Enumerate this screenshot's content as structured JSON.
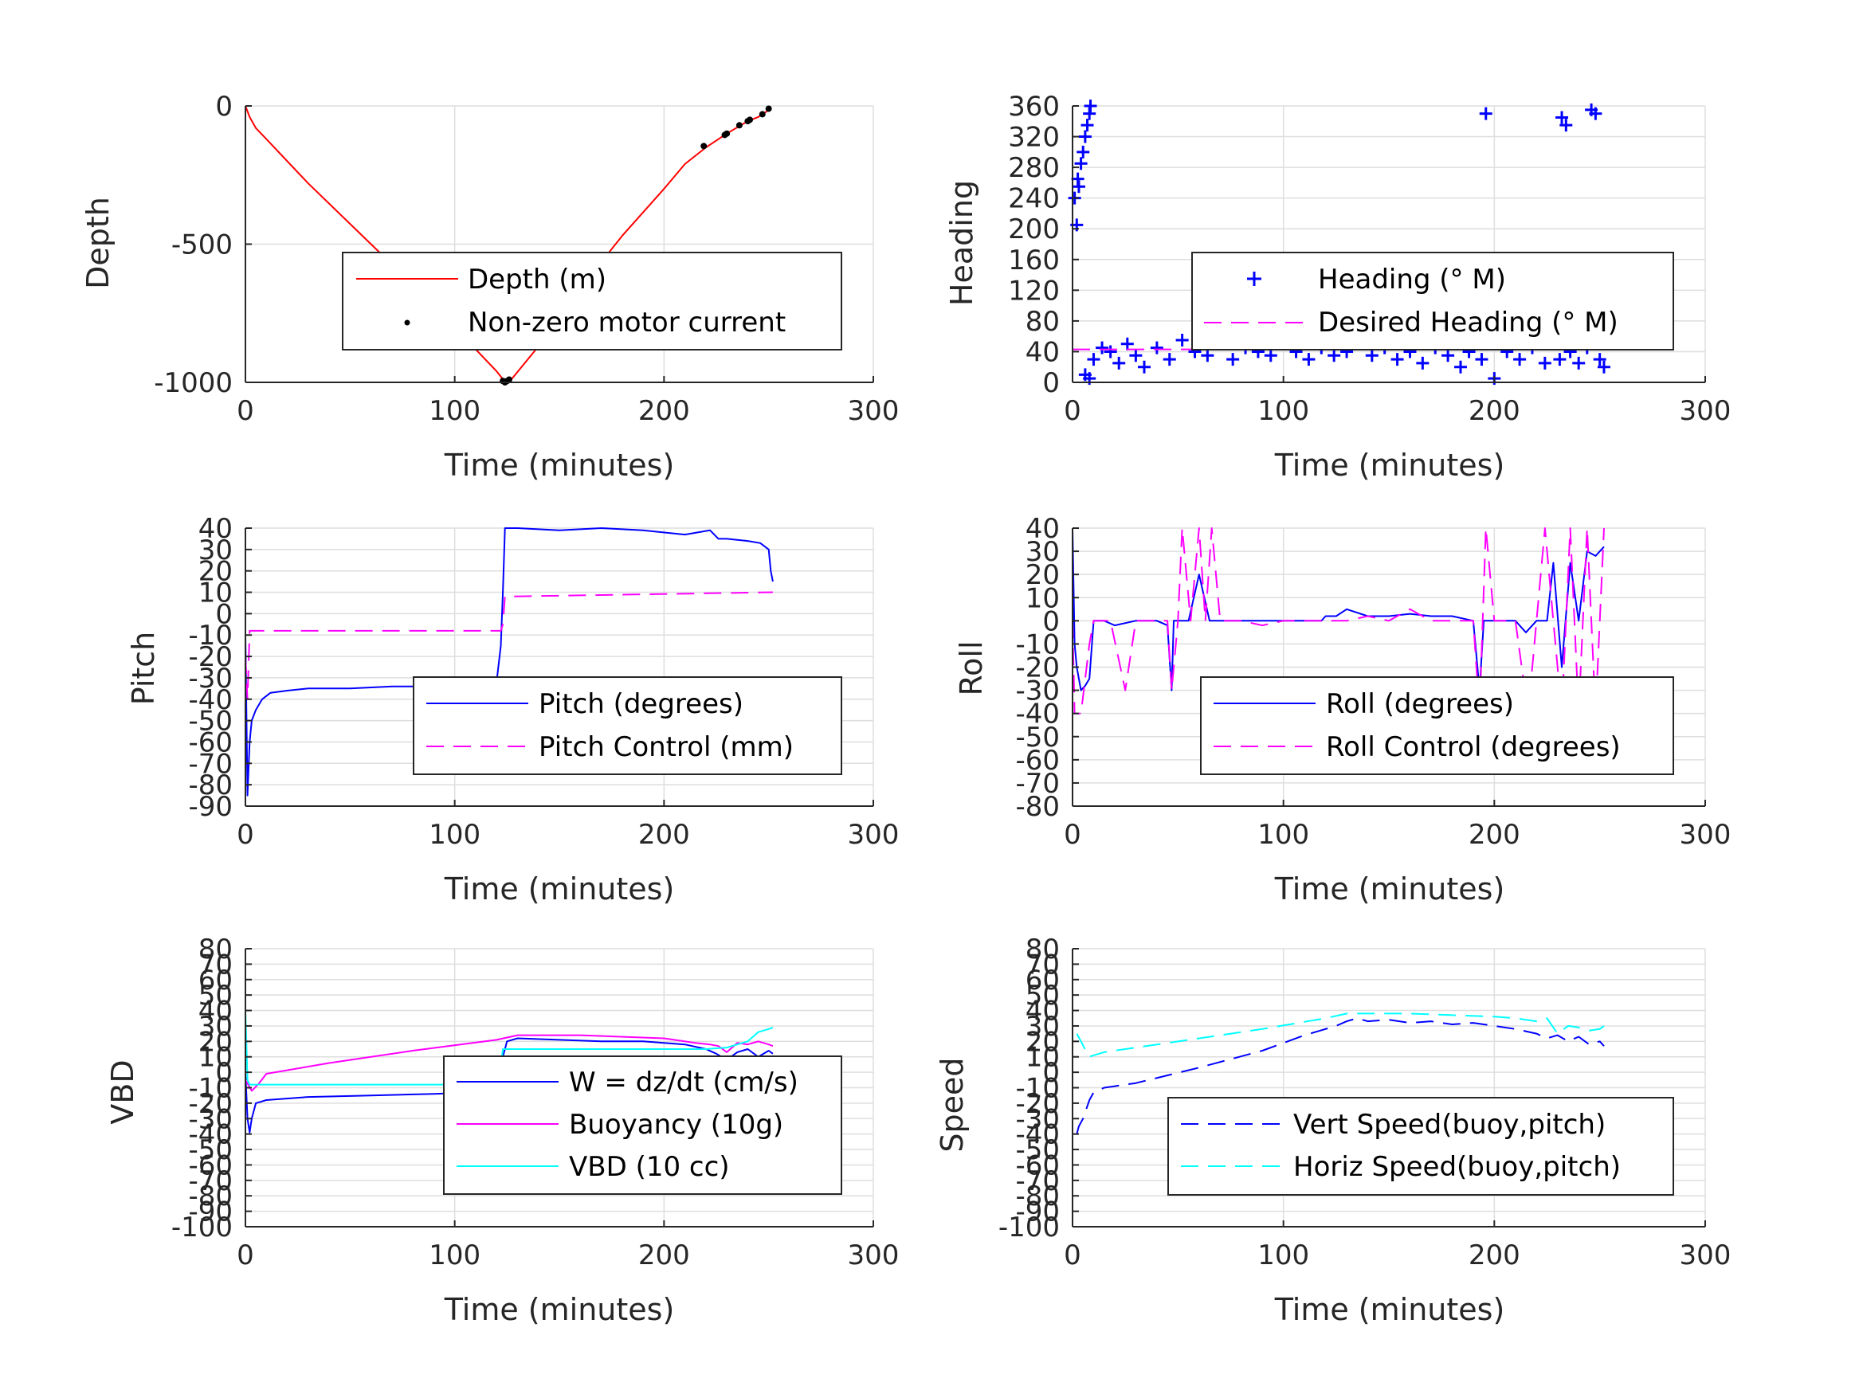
{
  "chart_data": [
    {
      "id": "depth",
      "type": "line",
      "xlabel": "Time (minutes)",
      "ylabel": "Depth",
      "xlim": [
        0,
        300
      ],
      "ylim": [
        -1000,
        0
      ],
      "xticks": [
        0,
        100,
        200,
        300
      ],
      "yticks": [
        -1000,
        -500,
        0
      ],
      "grid": true,
      "legend": "center-right",
      "series": [
        {
          "name": "Depth (m)",
          "color": "#ff0000",
          "style": "solid",
          "x": [
            0,
            2,
            5,
            10,
            30,
            60,
            90,
            110,
            120,
            124,
            127,
            140,
            160,
            180,
            200,
            210,
            220,
            230,
            240,
            245,
            250,
            251
          ],
          "y": [
            0,
            -40,
            -80,
            -120,
            -280,
            -500,
            -720,
            -880,
            -960,
            -998,
            -990,
            -870,
            -660,
            -470,
            -300,
            -210,
            -150,
            -100,
            -55,
            -40,
            -15,
            -5
          ]
        },
        {
          "name": "Non-zero motor current",
          "color": "#000000",
          "style": "marker-dot",
          "x": [
            123,
            124,
            125,
            126,
            219,
            229,
            230,
            236,
            240,
            241,
            247,
            250
          ],
          "y": [
            -995,
            -1000,
            -995,
            -990,
            -145,
            -105,
            -100,
            -70,
            -55,
            -50,
            -30,
            -10
          ]
        }
      ]
    },
    {
      "id": "heading",
      "type": "scatter",
      "xlabel": "Time (minutes)",
      "ylabel": "Heading",
      "xlim": [
        0,
        300
      ],
      "ylim": [
        0,
        360
      ],
      "xticks": [
        0,
        100,
        200,
        300
      ],
      "yticks": [
        0,
        40,
        80,
        120,
        160,
        200,
        240,
        280,
        320,
        360
      ],
      "grid": true,
      "legend": "center-right",
      "series": [
        {
          "name": "Heading (° M)",
          "color": "#0000ff",
          "style": "marker-plus",
          "x": [
            1,
            2,
            2.5,
            3,
            4,
            5,
            6,
            7,
            8,
            8.5,
            6,
            8,
            10,
            14,
            18,
            22,
            26,
            30,
            34,
            40,
            46,
            52,
            58,
            64,
            70,
            76,
            82,
            88,
            94,
            100,
            106,
            112,
            118,
            124,
            130,
            136,
            142,
            148,
            154,
            160,
            166,
            172,
            178,
            184,
            188,
            194,
            196,
            200,
            206,
            212,
            218,
            224,
            228,
            231,
            232,
            234,
            236,
            240,
            244,
            246,
            248,
            250,
            252
          ],
          "y": [
            240,
            205,
            265,
            255,
            285,
            300,
            320,
            335,
            350,
            360,
            10,
            5,
            30,
            45,
            40,
            25,
            50,
            35,
            20,
            45,
            30,
            55,
            40,
            35,
            50,
            30,
            45,
            40,
            35,
            50,
            40,
            30,
            45,
            35,
            40,
            55,
            35,
            45,
            30,
            40,
            25,
            45,
            35,
            20,
            40,
            30,
            350,
            5,
            40,
            30,
            45,
            25,
            50,
            30,
            345,
            335,
            40,
            25,
            45,
            355,
            350,
            30,
            20
          ]
        },
        {
          "name": "Desired Heading (° M)",
          "color": "#ff00ff",
          "style": "dashed",
          "x": [
            0,
            252
          ],
          "y": [
            43,
            43
          ]
        }
      ]
    },
    {
      "id": "pitch",
      "type": "line",
      "xlabel": "Time (minutes)",
      "ylabel": "Pitch",
      "xlim": [
        0,
        300
      ],
      "ylim": [
        -90,
        40
      ],
      "xticks": [
        0,
        100,
        200,
        300
      ],
      "yticks": [
        -90,
        -80,
        -70,
        -60,
        -50,
        -40,
        -30,
        -20,
        -10,
        0,
        10,
        20,
        30,
        40
      ],
      "grid": true,
      "legend": "center-right",
      "series": [
        {
          "name": "Pitch (degrees)",
          "color": "#0000ff",
          "style": "solid",
          "x": [
            0,
            1,
            2,
            3,
            5,
            8,
            12,
            20,
            30,
            50,
            70,
            90,
            110,
            120,
            122,
            123,
            124,
            130,
            150,
            170,
            190,
            210,
            222,
            226,
            230,
            240,
            246,
            250,
            251,
            252
          ],
          "y": [
            -10,
            -85,
            -60,
            -50,
            -45,
            -40,
            -37,
            -36,
            -35,
            -35,
            -34,
            -34,
            -33,
            -32,
            -15,
            10,
            40,
            40,
            39,
            40,
            39,
            37,
            39,
            35,
            35,
            34,
            33,
            30,
            20,
            15
          ]
        },
        {
          "name": "Pitch Control (mm)",
          "color": "#ff00ff",
          "style": "dashed",
          "x": [
            0,
            1,
            2,
            3,
            122,
            123,
            124,
            252
          ],
          "y": [
            -20,
            -40,
            -8,
            -8,
            -8,
            -5,
            8,
            10
          ]
        }
      ]
    },
    {
      "id": "roll",
      "type": "line",
      "xlabel": "Time (minutes)",
      "ylabel": "Roll",
      "xlim": [
        0,
        300
      ],
      "ylim": [
        -80,
        40
      ],
      "xticks": [
        0,
        100,
        200,
        300
      ],
      "yticks": [
        -80,
        -70,
        -60,
        -50,
        -40,
        -30,
        -20,
        -10,
        0,
        10,
        20,
        30,
        40
      ],
      "grid": true,
      "legend": "center-right",
      "series": [
        {
          "name": "Roll (degrees)",
          "color": "#0000ff",
          "style": "solid",
          "x": [
            0,
            1,
            2,
            4,
            6,
            8,
            10,
            15,
            20,
            30,
            40,
            45,
            47,
            48,
            55,
            60,
            65,
            70,
            80,
            90,
            100,
            110,
            118,
            120,
            125,
            130,
            140,
            150,
            160,
            170,
            180,
            190,
            193,
            195,
            200,
            210,
            215,
            220,
            225,
            228,
            232,
            236,
            240,
            244,
            248,
            252
          ],
          "y": [
            40,
            -10,
            -20,
            -30,
            -28,
            -25,
            0,
            0,
            -2,
            0,
            0,
            -2,
            -30,
            0,
            0,
            20,
            0,
            0,
            0,
            0,
            0,
            0,
            0,
            2,
            2,
            5,
            2,
            2,
            3,
            2,
            2,
            0,
            -30,
            0,
            0,
            0,
            -5,
            0,
            0,
            25,
            -20,
            25,
            0,
            30,
            28,
            32
          ]
        },
        {
          "name": "Roll Control (degrees)",
          "color": "#ff00ff",
          "style": "dashed",
          "x": [
            0,
            1,
            4,
            8,
            10,
            18,
            25,
            30,
            45,
            47,
            50,
            52,
            56,
            60,
            63,
            66,
            70,
            80,
            90,
            100,
            110,
            120,
            126,
            130,
            140,
            150,
            160,
            170,
            180,
            190,
            193,
            196,
            200,
            210,
            216,
            220,
            224,
            228,
            232,
            236,
            240,
            244,
            248,
            252
          ],
          "y": [
            0,
            -40,
            -40,
            -10,
            0,
            0,
            -30,
            0,
            0,
            -30,
            0,
            40,
            0,
            40,
            0,
            40,
            0,
            0,
            -2,
            0,
            0,
            0,
            0,
            0,
            2,
            0,
            5,
            0,
            0,
            0,
            -40,
            40,
            0,
            0,
            -40,
            0,
            40,
            0,
            -40,
            40,
            -40,
            40,
            -40,
            40
          ]
        }
      ]
    },
    {
      "id": "vbd",
      "type": "line",
      "xlabel": "Time (minutes)",
      "ylabel": "VBD",
      "xlim": [
        0,
        300
      ],
      "ylim": [
        -100,
        80
      ],
      "xticks": [
        0,
        100,
        200,
        300
      ],
      "yticks": [
        -100,
        -90,
        -80,
        -70,
        -60,
        -50,
        -40,
        -30,
        -20,
        -10,
        0,
        10,
        20,
        30,
        40,
        50,
        60,
        70,
        80
      ],
      "grid": true,
      "legend": "center-right",
      "series": [
        {
          "name": "W = dz/dt (cm/s)",
          "color": "#0000ff",
          "style": "solid",
          "x": [
            0,
            1,
            2,
            3,
            5,
            10,
            30,
            60,
            90,
            110,
            121,
            123,
            125,
            130,
            150,
            170,
            190,
            210,
            220,
            225,
            230,
            235,
            240,
            245,
            250,
            252
          ],
          "y": [
            0,
            -30,
            -39,
            -30,
            -20,
            -18,
            -16,
            -15,
            -14,
            -13,
            -14,
            10,
            20,
            22,
            21,
            20,
            20,
            18,
            15,
            12,
            8,
            13,
            15,
            10,
            14,
            12
          ]
        },
        {
          "name": "Buoyancy (10g)",
          "color": "#ff00ff",
          "style": "solid",
          "x": [
            0,
            3,
            6,
            10,
            40,
            80,
            120,
            130,
            160,
            200,
            215,
            222,
            226,
            230,
            235,
            240,
            245,
            250,
            252
          ],
          "y": [
            -5,
            -12,
            -8,
            -1,
            6,
            14,
            21,
            24,
            24,
            22,
            19,
            18,
            17,
            13,
            19,
            18,
            20,
            18,
            17
          ]
        },
        {
          "name": "VBD (10 cc)",
          "color": "#00ffff",
          "style": "solid",
          "x": [
            0,
            1,
            2,
            3,
            5,
            10,
            60,
            121,
            123,
            125,
            200,
            220,
            230,
            240,
            245,
            250,
            252
          ],
          "y": [
            40,
            -5,
            -8,
            -8,
            -8,
            -8,
            -8,
            -8,
            15,
            15,
            15,
            15,
            16,
            20,
            26,
            28,
            29
          ]
        }
      ]
    },
    {
      "id": "speed",
      "type": "line",
      "xlabel": "Time (minutes)",
      "ylabel": "Speed",
      "xlim": [
        0,
        300
      ],
      "ylim": [
        -100,
        80
      ],
      "xticks": [
        0,
        100,
        200,
        300
      ],
      "yticks": [
        -100,
        -90,
        -80,
        -70,
        -60,
        -50,
        -40,
        -30,
        -20,
        -10,
        0,
        10,
        20,
        30,
        40,
        50,
        60,
        70,
        80
      ],
      "grid": true,
      "legend": "center-right",
      "series": [
        {
          "name": "Vert Speed(buoy,pitch)",
          "color": "#0000ff",
          "style": "dashed",
          "x": [
            2,
            3,
            5,
            7,
            8,
            10,
            15,
            30,
            60,
            90,
            110,
            125,
            130,
            135,
            140,
            150,
            160,
            170,
            180,
            190,
            200,
            210,
            220,
            225,
            230,
            235,
            240,
            245,
            250,
            252
          ],
          "y": [
            -40,
            -35,
            -30,
            -22,
            -18,
            -13,
            -10,
            -7,
            3,
            14,
            24,
            30,
            33,
            35,
            33,
            34,
            32,
            33,
            31,
            32,
            30,
            28,
            25,
            22,
            24,
            20,
            23,
            18,
            20,
            17
          ]
        },
        {
          "name": "Horiz Speed(buoy,pitch)",
          "color": "#00ffff",
          "style": "dashed",
          "x": [
            2,
            4,
            7,
            8,
            10,
            15,
            30,
            60,
            90,
            120,
            130,
            140,
            160,
            180,
            200,
            210,
            220,
            225,
            230,
            235,
            240,
            245,
            250,
            252
          ],
          "y": [
            25,
            20,
            12,
            10,
            11,
            13,
            16,
            22,
            28,
            35,
            38,
            38,
            38,
            37,
            36,
            35,
            33,
            35,
            25,
            30,
            29,
            27,
            28,
            30
          ]
        }
      ]
    }
  ]
}
